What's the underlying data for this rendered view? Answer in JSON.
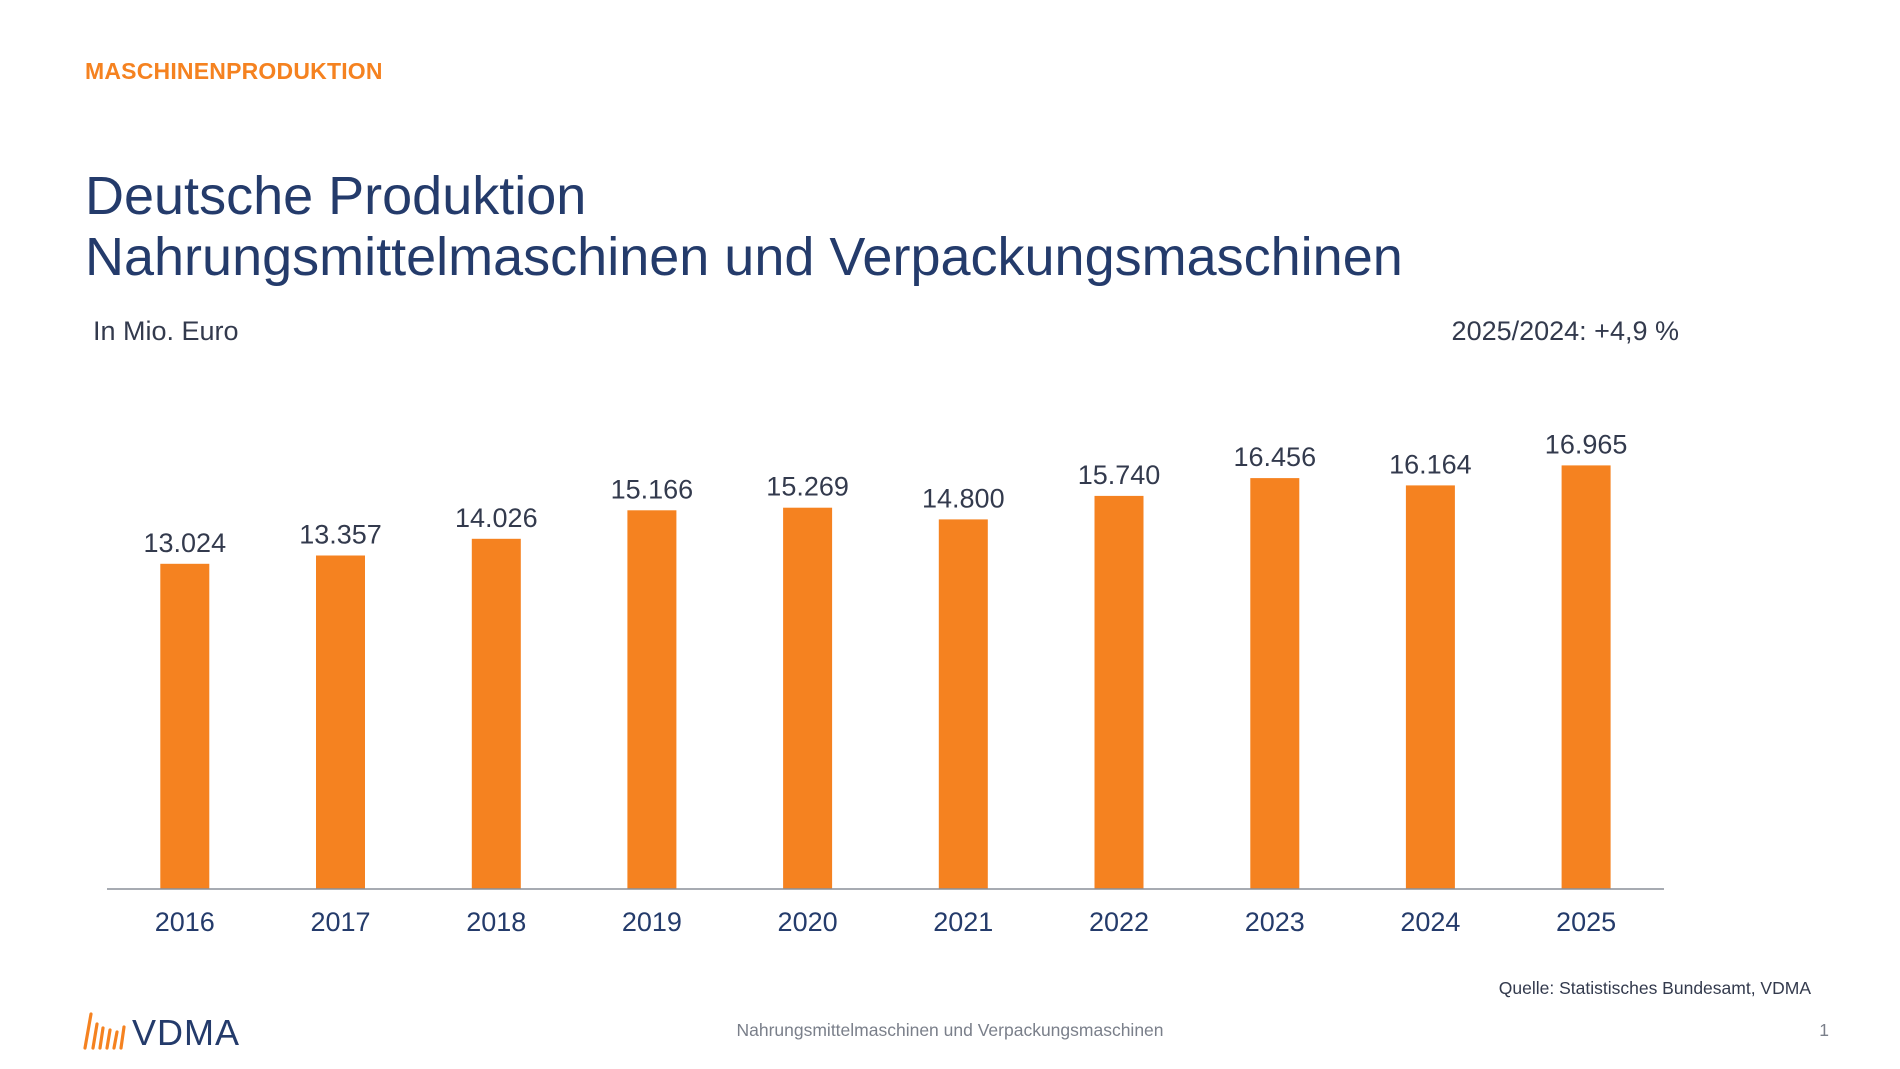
{
  "header": {
    "kicker": "MASCHINENPRODUKTION",
    "title_line1": "Deutsche Produktion",
    "title_line2": "Nahrungsmittelmaschinen und Verpackungsmaschinen",
    "unit": "In Mio. Euro",
    "growth": "2025/2024: +4,9 %"
  },
  "chart_data": {
    "type": "bar",
    "categories": [
      "2016",
      "2017",
      "2018",
      "2019",
      "2020",
      "2021",
      "2022",
      "2023",
      "2024",
      "2025"
    ],
    "values": [
      13024,
      13357,
      14026,
      15166,
      15269,
      14800,
      15740,
      16456,
      16164,
      16965
    ],
    "value_labels": [
      "13.024",
      "13.357",
      "14.026",
      "15.166",
      "15.269",
      "14.800",
      "15.740",
      "16.456",
      "16.164",
      "16.965"
    ],
    "title": "",
    "xlabel": "",
    "ylabel": "",
    "ylim": [
      0,
      17500
    ],
    "grid": false,
    "bar_color": "#f58220"
  },
  "footer": {
    "source": "Quelle: Statistisches Bundesamt, VDMA",
    "center_text": "Nahrungsmittelmaschinen und Verpackungsmaschinen",
    "page_number": "1",
    "logo_text": "VDMA"
  },
  "colors": {
    "accent": "#f58220",
    "title": "#243b6b",
    "text": "#333a4d",
    "muted": "#7a7f8a"
  }
}
